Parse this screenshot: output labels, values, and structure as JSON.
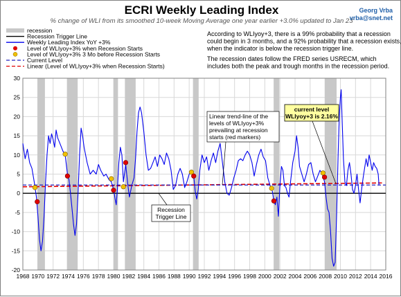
{
  "header": {
    "title": "ECRI Weekly Leading Index",
    "subtitle": "% change of WLI from its smoothed 10-week Moving Average one year earlier +3.0% updated to Jan 23",
    "author_name": "Georg Vrba",
    "author_email": "vrba@snet.net"
  },
  "notes": {
    "para1": [
      "According to WLIyoy+3, there is a 99% probability that a recession",
      "could begin in 3 months, and a 92% probability that a recession exists,",
      "when the indicator is below the recession trigger line."
    ],
    "para2": [
      "The recession dates follow the FRED series USRECM, which",
      "includes both the peak and trough months in the recession period."
    ]
  },
  "legend": [
    "recession",
    "Recession Trigger Line",
    "Weekly Leading Index YoY +3%",
    "Level of WLIyoy+3% when Recession Starts",
    "Level of WLIyoy+3% 3 Mo before Recession Starts",
    "Current Level",
    "Linear (Level of WLIyoy+3% when Recession Starts)"
  ],
  "annotations": {
    "trend": [
      "Linear trend-line of the",
      "levels of WLIyoy+3%",
      "prevailing at recession",
      "starts (red markers)"
    ],
    "trigger": [
      "Recession",
      "Trigger Line"
    ],
    "current": [
      "current level",
      "WLIyoy+3 is 2.16%"
    ]
  },
  "colors": {
    "wli_line": "#0000ee",
    "recession": "#c8c8c8",
    "trigger": "#000000",
    "red_marker": "#e00000",
    "yellow_marker": "#f0c000",
    "current_level": "#2020c0",
    "linear_trend": "#e00000",
    "current_box": "#ffffa0"
  },
  "chart_data": {
    "type": "line",
    "title": "ECRI Weekly Leading Index",
    "xlim": [
      1968,
      2016
    ],
    "ylim": [
      -20,
      30
    ],
    "x_ticks": [
      1968,
      1970,
      1972,
      1974,
      1976,
      1978,
      1980,
      1982,
      1984,
      1986,
      1988,
      1990,
      1992,
      1994,
      1996,
      1998,
      2000,
      2002,
      2004,
      2006,
      2008,
      2010,
      2012,
      2014,
      2016
    ],
    "y_ticks": [
      -20,
      -15,
      -10,
      -5,
      0,
      5,
      10,
      15,
      20,
      25,
      30
    ],
    "grid": true,
    "recessions": [
      [
        1969.92,
        1970.92
      ],
      [
        1973.83,
        1975.25
      ],
      [
        1980.0,
        1980.58
      ],
      [
        1981.5,
        1982.92
      ],
      [
        1990.5,
        1991.25
      ],
      [
        2001.17,
        2001.92
      ],
      [
        2007.92,
        2009.5
      ]
    ],
    "trigger_level": 0,
    "current_level": 2.16,
    "linear_trend": [
      [
        1968,
        1.7
      ],
      [
        2015.5,
        2.7
      ]
    ],
    "recession_start_markers": [
      {
        "x": 1969.9,
        "y": -2.2
      },
      {
        "x": 1973.9,
        "y": 4.5
      },
      {
        "x": 1980.0,
        "y": 0.8
      },
      {
        "x": 1981.6,
        "y": 8.0
      },
      {
        "x": 1990.6,
        "y": 4.5
      },
      {
        "x": 2001.2,
        "y": -2.0
      },
      {
        "x": 2007.9,
        "y": 4.2
      }
    ],
    "pre_recession_markers": [
      {
        "x": 1969.6,
        "y": 1.5
      },
      {
        "x": 1973.6,
        "y": 10.2
      },
      {
        "x": 1979.7,
        "y": 3.8
      },
      {
        "x": 1981.3,
        "y": 1.7
      },
      {
        "x": 1990.3,
        "y": 5.5
      },
      {
        "x": 2000.9,
        "y": 1.3
      },
      {
        "x": 2007.7,
        "y": 5.3
      }
    ],
    "series": [
      {
        "name": "Weekly Leading Index YoY +3%",
        "points": [
          [
            1968.0,
            13.0
          ],
          [
            1968.3,
            9.0
          ],
          [
            1968.6,
            11.5
          ],
          [
            1968.9,
            8.0
          ],
          [
            1969.2,
            6.5
          ],
          [
            1969.5,
            3.0
          ],
          [
            1969.8,
            -1.0
          ],
          [
            1970.0,
            -6.0
          ],
          [
            1970.2,
            -12.0
          ],
          [
            1970.4,
            -15.0
          ],
          [
            1970.6,
            -12.5
          ],
          [
            1970.8,
            -6.0
          ],
          [
            1971.0,
            3.0
          ],
          [
            1971.2,
            10.0
          ],
          [
            1971.4,
            15.0
          ],
          [
            1971.6,
            13.0
          ],
          [
            1971.8,
            15.5
          ],
          [
            1972.0,
            14.0
          ],
          [
            1972.2,
            12.0
          ],
          [
            1972.4,
            16.5
          ],
          [
            1972.6,
            14.5
          ],
          [
            1972.8,
            13.5
          ],
          [
            1973.0,
            12.5
          ],
          [
            1973.3,
            11.0
          ],
          [
            1973.6,
            10.0
          ],
          [
            1973.9,
            5.0
          ],
          [
            1974.1,
            3.5
          ],
          [
            1974.3,
            0.0
          ],
          [
            1974.5,
            -4.0
          ],
          [
            1974.7,
            -8.0
          ],
          [
            1974.9,
            -11.0
          ],
          [
            1975.1,
            -8.0
          ],
          [
            1975.3,
            0.0
          ],
          [
            1975.5,
            10.0
          ],
          [
            1975.7,
            17.0
          ],
          [
            1975.9,
            15.0
          ],
          [
            1976.1,
            12.0
          ],
          [
            1976.5,
            8.0
          ],
          [
            1976.9,
            5.0
          ],
          [
            1977.3,
            6.0
          ],
          [
            1977.7,
            5.0
          ],
          [
            1978.0,
            7.5
          ],
          [
            1978.3,
            6.0
          ],
          [
            1978.7,
            4.5
          ],
          [
            1979.0,
            5.0
          ],
          [
            1979.4,
            3.5
          ],
          [
            1979.7,
            3.0
          ],
          [
            1980.0,
            1.0
          ],
          [
            1980.2,
            -1.5
          ],
          [
            1980.35,
            -3.0
          ],
          [
            1980.5,
            1.0
          ],
          [
            1980.7,
            8.0
          ],
          [
            1980.9,
            12.0
          ],
          [
            1981.1,
            10.0
          ],
          [
            1981.3,
            3.0
          ],
          [
            1981.6,
            7.5
          ],
          [
            1981.9,
            2.0
          ],
          [
            1982.1,
            -1.0
          ],
          [
            1982.4,
            2.0
          ],
          [
            1982.7,
            4.0
          ],
          [
            1982.9,
            9.0
          ],
          [
            1983.1,
            16.0
          ],
          [
            1983.3,
            21.0
          ],
          [
            1983.5,
            22.5
          ],
          [
            1983.7,
            21.0
          ],
          [
            1984.0,
            16.0
          ],
          [
            1984.3,
            10.0
          ],
          [
            1984.6,
            6.0
          ],
          [
            1984.9,
            6.5
          ],
          [
            1985.2,
            8.0
          ],
          [
            1985.5,
            9.5
          ],
          [
            1985.8,
            7.0
          ],
          [
            1986.1,
            10.0
          ],
          [
            1986.4,
            9.0
          ],
          [
            1986.7,
            7.5
          ],
          [
            1987.0,
            10.5
          ],
          [
            1987.3,
            9.0
          ],
          [
            1987.6,
            6.0
          ],
          [
            1987.9,
            1.0
          ],
          [
            1988.2,
            2.0
          ],
          [
            1988.5,
            5.0
          ],
          [
            1988.8,
            6.5
          ],
          [
            1989.1,
            5.0
          ],
          [
            1989.4,
            1.5
          ],
          [
            1989.7,
            3.0
          ],
          [
            1990.0,
            5.0
          ],
          [
            1990.3,
            6.0
          ],
          [
            1990.6,
            4.5
          ],
          [
            1990.8,
            0.5
          ],
          [
            1991.0,
            -1.5
          ],
          [
            1991.2,
            1.0
          ],
          [
            1991.4,
            6.0
          ],
          [
            1991.7,
            10.0
          ],
          [
            1992.0,
            8.0
          ],
          [
            1992.3,
            9.5
          ],
          [
            1992.6,
            6.0
          ],
          [
            1992.9,
            8.5
          ],
          [
            1993.2,
            10.5
          ],
          [
            1993.5,
            8.0
          ],
          [
            1993.8,
            11.0
          ],
          [
            1994.1,
            13.0
          ],
          [
            1994.4,
            8.0
          ],
          [
            1994.7,
            3.0
          ],
          [
            1995.0,
            0.0
          ],
          [
            1995.3,
            -0.5
          ],
          [
            1995.6,
            1.5
          ],
          [
            1995.9,
            4.0
          ],
          [
            1996.2,
            6.0
          ],
          [
            1996.5,
            8.5
          ],
          [
            1996.8,
            9.0
          ],
          [
            1997.1,
            8.5
          ],
          [
            1997.4,
            10.0
          ],
          [
            1997.7,
            11.0
          ],
          [
            1998.0,
            10.0
          ],
          [
            1998.3,
            8.0
          ],
          [
            1998.6,
            4.5
          ],
          [
            1998.9,
            7.5
          ],
          [
            1999.2,
            10.0
          ],
          [
            1999.5,
            11.5
          ],
          [
            1999.8,
            9.5
          ],
          [
            2000.1,
            8.5
          ],
          [
            2000.4,
            4.0
          ],
          [
            2000.7,
            2.0
          ],
          [
            2001.0,
            0.5
          ],
          [
            2001.2,
            -2.0
          ],
          [
            2001.4,
            -3.0
          ],
          [
            2001.6,
            -1.0
          ],
          [
            2001.8,
            -6.0
          ],
          [
            2002.0,
            2.0
          ],
          [
            2002.2,
            7.0
          ],
          [
            2002.4,
            6.0
          ],
          [
            2002.6,
            2.0
          ],
          [
            2002.8,
            1.5
          ],
          [
            2003.0,
            0.0
          ],
          [
            2003.2,
            -1.0
          ],
          [
            2003.4,
            3.0
          ],
          [
            2003.7,
            8.0
          ],
          [
            2004.0,
            11.0
          ],
          [
            2004.2,
            15.0
          ],
          [
            2004.4,
            12.0
          ],
          [
            2004.6,
            7.0
          ],
          [
            2004.9,
            5.0
          ],
          [
            2005.2,
            3.0
          ],
          [
            2005.5,
            5.0
          ],
          [
            2005.8,
            7.5
          ],
          [
            2006.1,
            8.0
          ],
          [
            2006.4,
            5.0
          ],
          [
            2006.7,
            3.0
          ],
          [
            2007.0,
            4.5
          ],
          [
            2007.3,
            6.0
          ],
          [
            2007.6,
            5.0
          ],
          [
            2007.9,
            3.0
          ],
          [
            2008.1,
            -1.0
          ],
          [
            2008.3,
            -4.0
          ],
          [
            2008.5,
            -5.0
          ],
          [
            2008.7,
            -10.0
          ],
          [
            2008.9,
            -17.0
          ],
          [
            2009.1,
            -19.0
          ],
          [
            2009.3,
            -18.0
          ],
          [
            2009.5,
            -6.0
          ],
          [
            2009.7,
            10.0
          ],
          [
            2009.85,
            20.0
          ],
          [
            2010.0,
            25.0
          ],
          [
            2010.1,
            27.0
          ],
          [
            2010.25,
            18.0
          ],
          [
            2010.4,
            9.0
          ],
          [
            2010.6,
            3.0
          ],
          [
            2010.8,
            2.0
          ],
          [
            2011.0,
            6.0
          ],
          [
            2011.2,
            8.0
          ],
          [
            2011.4,
            5.0
          ],
          [
            2011.6,
            1.0
          ],
          [
            2011.8,
            0.0
          ],
          [
            2012.0,
            2.0
          ],
          [
            2012.2,
            5.0
          ],
          [
            2012.4,
            1.0
          ],
          [
            2012.6,
            -2.5
          ],
          [
            2012.8,
            1.0
          ],
          [
            2013.0,
            4.0
          ],
          [
            2013.2,
            6.5
          ],
          [
            2013.4,
            9.0
          ],
          [
            2013.6,
            7.0
          ],
          [
            2013.8,
            10.0
          ],
          [
            2014.0,
            8.0
          ],
          [
            2014.2,
            6.0
          ],
          [
            2014.4,
            8.0
          ],
          [
            2014.6,
            7.0
          ],
          [
            2014.8,
            6.5
          ],
          [
            2015.0,
            5.0
          ],
          [
            2015.1,
            2.16
          ]
        ]
      }
    ]
  }
}
